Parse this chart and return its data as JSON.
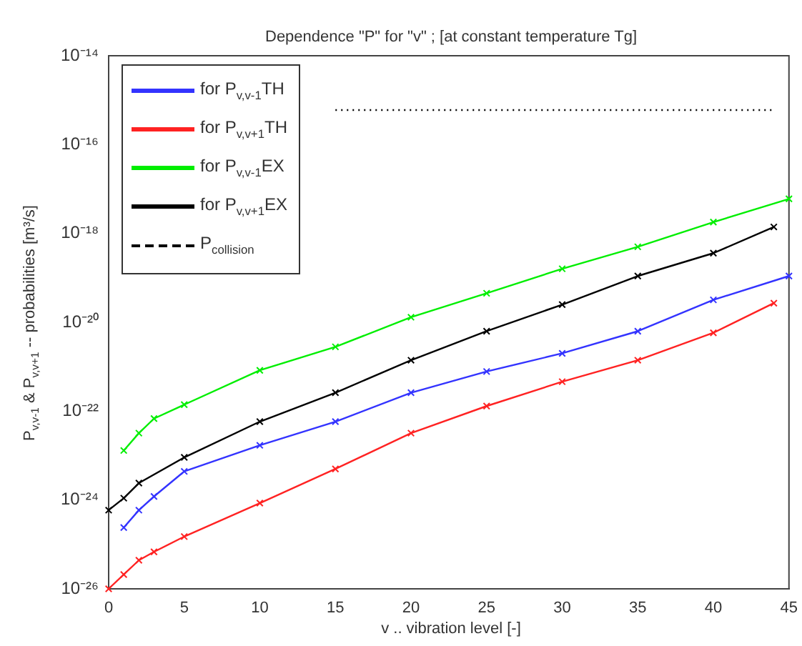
{
  "chart_data": {
    "type": "line",
    "title": "Dependence \"P\" for \"v\" ; [at constant temperature Tg]",
    "xlabel": "v .. vibration level [-]",
    "ylabel": "P$_{v,v-1}$ & P$_{v,v+1}$ -- probabilities [m³/s]",
    "log": "y",
    "grid": false,
    "legend": "top left",
    "marker": "cross",
    "xlim": [
      0,
      45
    ],
    "xticks": [
      0,
      5,
      10,
      15,
      20,
      25,
      30,
      35,
      40,
      45
    ],
    "ylim": [
      1e-26,
      1e-14
    ],
    "yticks": [
      {
        "value": 1e-26,
        "label": "10⁻²⁶"
      },
      {
        "value": 1e-24,
        "label": "10⁻²⁴"
      },
      {
        "value": 1e-22,
        "label": "10⁻²²"
      },
      {
        "value": 1e-20,
        "label": "10⁻²⁰"
      },
      {
        "value": 1e-18,
        "label": "10⁻¹⁸"
      },
      {
        "value": 1e-16,
        "label": "10⁻¹⁶"
      },
      {
        "value": 1e-14,
        "label": "10⁻¹⁴"
      }
    ],
    "series": [
      {
        "name": "for P$_{v,v-1}$TH",
        "color": "#3333ff",
        "x": [
          1,
          2,
          3,
          5,
          10,
          15,
          20,
          25,
          30,
          35,
          40,
          45
        ],
        "values": [
          2.4e-25,
          5.9e-25,
          1.2e-24,
          4.4e-24,
          1.7e-23,
          5.8e-23,
          2.6e-22,
          7.8e-22,
          2e-21,
          6.3e-21,
          3.2e-20,
          1.1e-19
        ]
      },
      {
        "name": "for P$_{v,v+1}$TH",
        "color": "#ff2222",
        "x": [
          0,
          1,
          2,
          3,
          5,
          10,
          15,
          20,
          25,
          30,
          35,
          40,
          44
        ],
        "values": [
          1e-26,
          2.1e-26,
          4.4e-26,
          6.8e-26,
          1.5e-25,
          8.5e-25,
          5e-24,
          3.2e-23,
          1.3e-22,
          4.6e-22,
          1.4e-21,
          5.8e-21,
          2.7e-20
        ]
      },
      {
        "name": "for P$_{v,v-1}$EX",
        "color": "#00ee00",
        "x": [
          1,
          2,
          3,
          5,
          10,
          15,
          20,
          25,
          30,
          35,
          40,
          45
        ],
        "values": [
          1.3e-23,
          3.2e-23,
          6.8e-23,
          1.4e-22,
          8.3e-22,
          2.8e-21,
          1.3e-20,
          4.5e-20,
          1.6e-19,
          5e-19,
          1.8e-18,
          6e-18
        ]
      },
      {
        "name": "for P$_{v,v+1}$EX",
        "color": "#000000",
        "x": [
          0,
          1,
          2,
          5,
          10,
          15,
          20,
          25,
          30,
          35,
          40,
          44
        ],
        "values": [
          5.9e-25,
          1.1e-24,
          2.4e-24,
          9.1e-24,
          5.8e-23,
          2.6e-22,
          1.4e-21,
          6.3e-21,
          2.5e-20,
          1.1e-19,
          3.6e-19,
          1.4e-18
        ]
      },
      {
        "name": "P$_{collision}$",
        "color": "#000000",
        "marker": "none",
        "line_style": "dotted",
        "x": [
          15,
          44
        ],
        "values": [
          6e-16,
          6e-16
        ]
      }
    ]
  }
}
